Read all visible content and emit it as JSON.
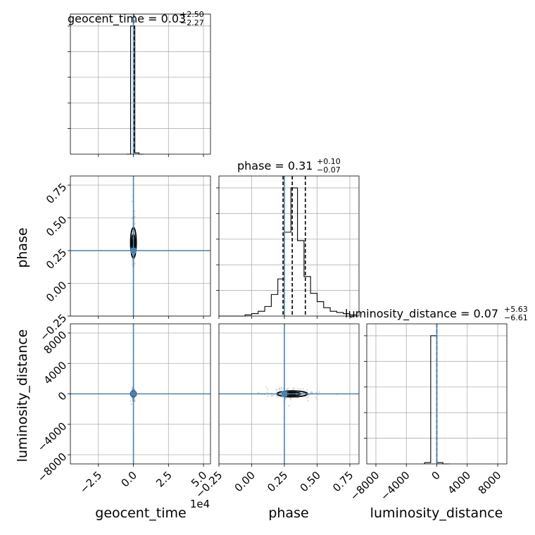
{
  "chart_data": {
    "type": "corner",
    "parameters": [
      "geocent_time",
      "phase",
      "luminosity_distance"
    ],
    "truths": {
      "geocent_time": 0.0,
      "phase": 0.25,
      "luminosity_distance": 0
    },
    "titles": [
      {
        "param": "geocent_time",
        "label": "geocent_time = ",
        "median": "0.03",
        "plus": "+2.50",
        "minus": "−2.27"
      },
      {
        "param": "phase",
        "label": "phase = ",
        "median": "0.31",
        "plus": "+0.10",
        "minus": "−0.07"
      },
      {
        "param": "luminosity_distance",
        "label": "luminosity_distance = ",
        "median": "0.07",
        "plus": "+5.63",
        "minus": "−6.61"
      }
    ],
    "axes": {
      "geocent_time": {
        "range": [
          -4.5,
          5.5
        ],
        "ticks": [
          -2.5,
          0.0,
          2.5,
          5.0
        ],
        "tick_labels": [
          "−2.5",
          "0.0",
          "2.5",
          "5.0"
        ],
        "offset_label": "1e4",
        "xlabel": "geocent_time"
      },
      "phase": {
        "range": [
          -0.25,
          0.82
        ],
        "ticks": [
          -0.25,
          0.0,
          0.25,
          0.5,
          0.75
        ],
        "tick_labels": [
          "−0.25",
          "0.00",
          "0.25",
          "0.50",
          "0.75"
        ],
        "xlabel": "phase",
        "ylabel": "phase"
      },
      "luminosity_distance": {
        "range": [
          -9200,
          9200
        ],
        "ticks": [
          -8000,
          -4000,
          0,
          4000,
          8000
        ],
        "tick_labels": [
          "−8000",
          "−4000",
          "0",
          "4000",
          "8000"
        ],
        "xlabel": "luminosity_distance",
        "ylabel": "luminosity_distance"
      }
    },
    "histograms": {
      "geocent_time": {
        "edges": [
          -0.5,
          -0.2,
          0.1,
          0.4,
          0.7
        ],
        "counts": [
          0,
          100,
          1,
          0
        ]
      },
      "phase": {
        "edges": [
          -0.25,
          -0.2,
          -0.15,
          -0.1,
          -0.05,
          0.0,
          0.05,
          0.1,
          0.15,
          0.2,
          0.25,
          0.3,
          0.35,
          0.4,
          0.45,
          0.5,
          0.55,
          0.6,
          0.65,
          0.7,
          0.75,
          0.8
        ],
        "counts": [
          0,
          0,
          0,
          0,
          1,
          2,
          4,
          8,
          18,
          31,
          70,
          107,
          63,
          33,
          19,
          12,
          7,
          4,
          3,
          2,
          1
        ]
      },
      "luminosity_distance": {
        "edges": [
          -1600,
          -800,
          0,
          800,
          1600
        ],
        "counts": [
          1,
          100,
          1,
          0
        ]
      }
    },
    "quantile_lines": {
      "geocent_time": [
        0.03
      ],
      "phase": [
        0.24,
        0.31,
        0.41
      ],
      "luminosity_distance": [
        0.07
      ]
    },
    "grid": true
  }
}
